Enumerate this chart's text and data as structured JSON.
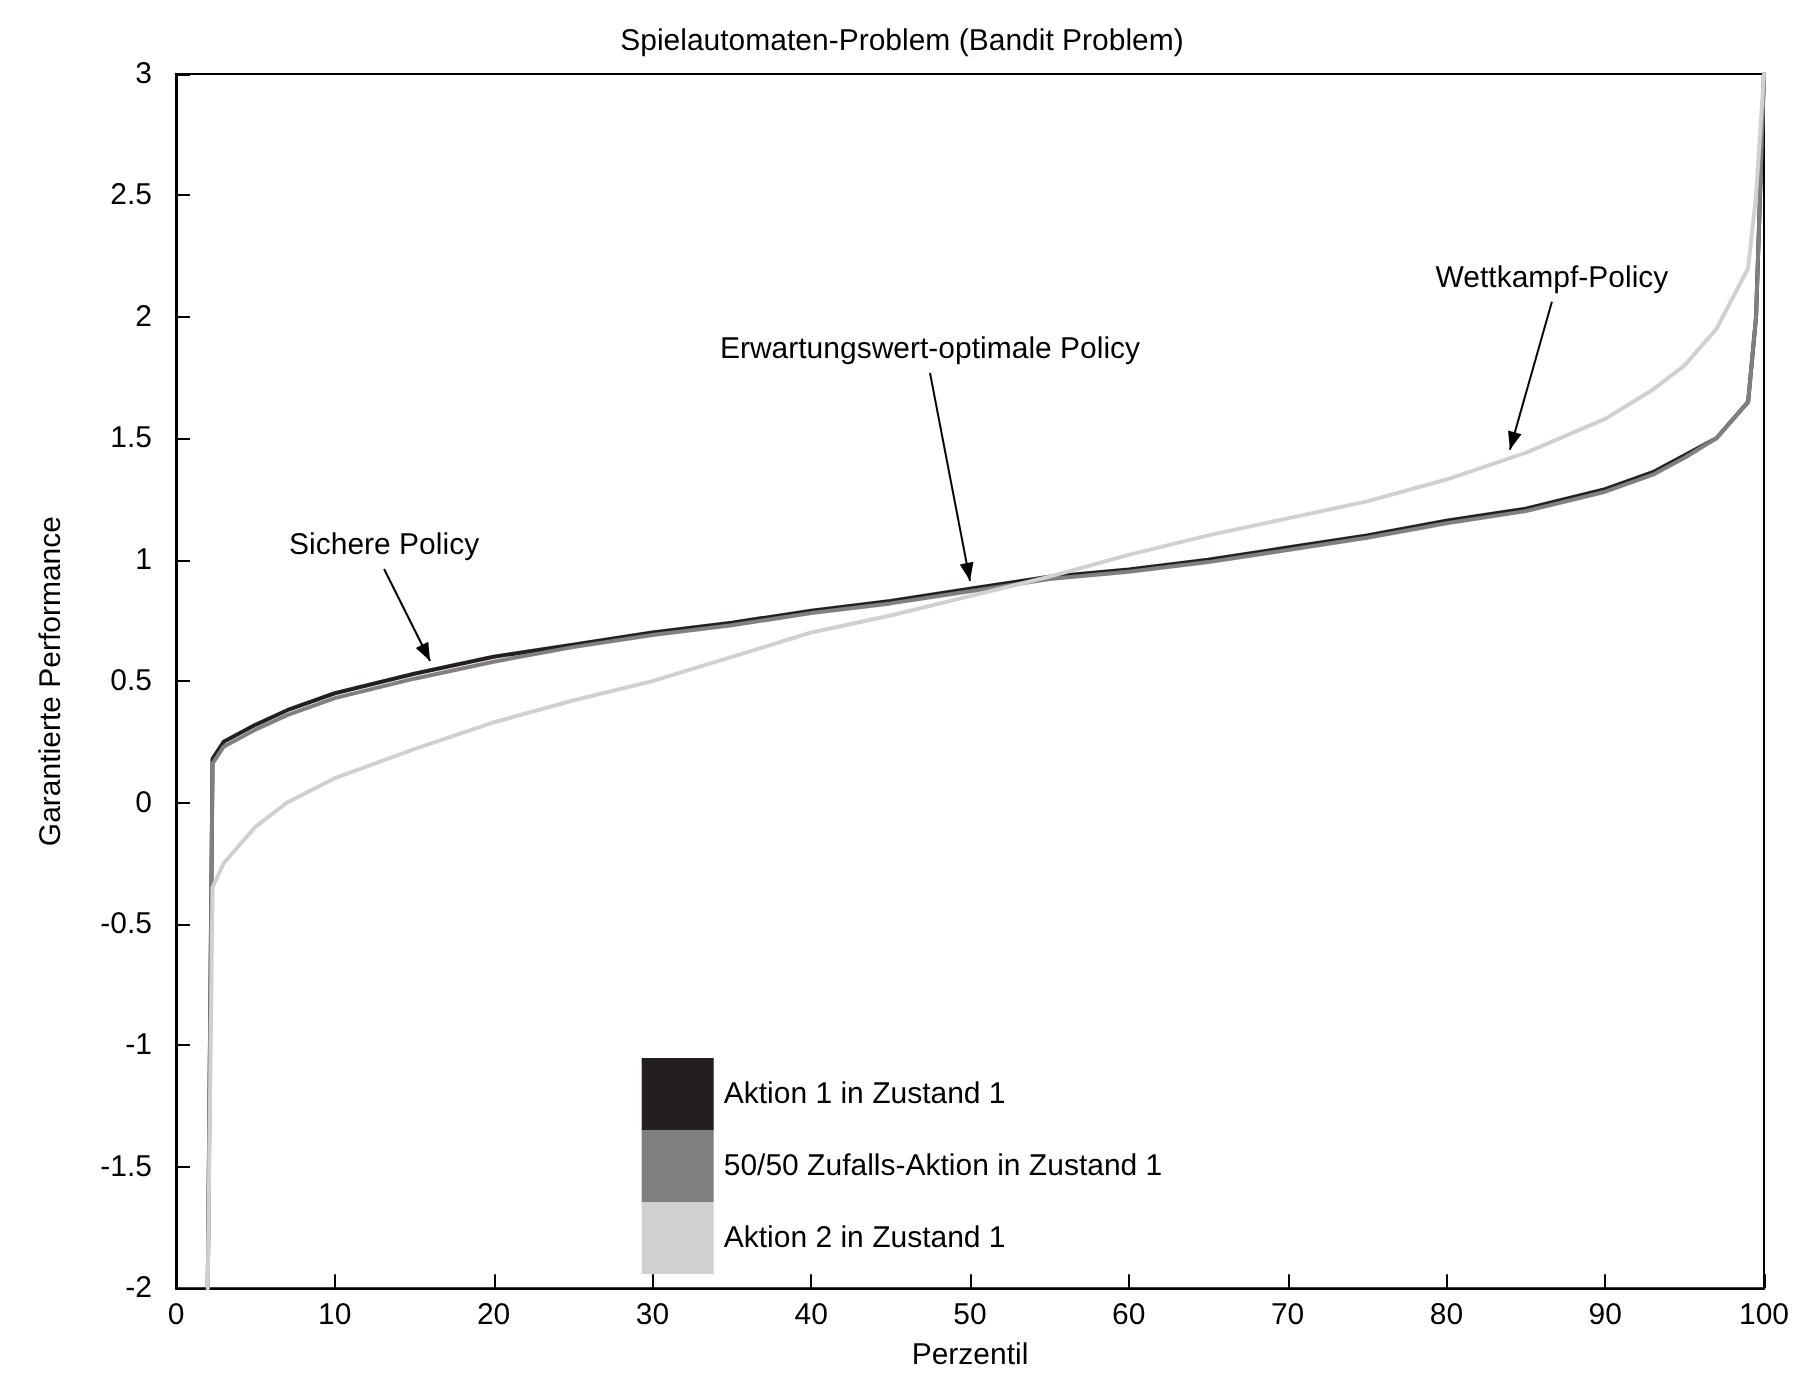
{
  "chart_data": {
    "type": "line",
    "title": "Spielautomaten-Problem (Bandit Problem)",
    "xlabel": "Perzentil",
    "ylabel": "Garantierte Performance",
    "x": [
      2,
      2.3,
      3,
      5,
      7,
      10,
      15,
      20,
      25,
      30,
      35,
      40,
      45,
      50,
      55,
      60,
      65,
      70,
      75,
      80,
      85,
      90,
      93,
      95,
      97,
      99,
      99.5,
      100
    ],
    "series": [
      {
        "name": "Aktion 1 in Zustand 1",
        "color": "#231f20",
        "values": [
          -2,
          0.18,
          0.25,
          0.32,
          0.38,
          0.45,
          0.53,
          0.6,
          0.65,
          0.7,
          0.74,
          0.79,
          0.83,
          0.88,
          0.93,
          0.96,
          1.0,
          1.05,
          1.1,
          1.16,
          1.21,
          1.29,
          1.36,
          1.43,
          1.5,
          1.65,
          2.0,
          3
        ]
      },
      {
        "name": "50/50 Zufalls-Aktion in Zustand 1",
        "color": "#808080",
        "values": [
          -2,
          0.16,
          0.23,
          0.3,
          0.36,
          0.43,
          0.51,
          0.58,
          0.64,
          0.69,
          0.73,
          0.78,
          0.82,
          0.87,
          0.92,
          0.95,
          0.99,
          1.04,
          1.09,
          1.15,
          1.2,
          1.28,
          1.35,
          1.42,
          1.5,
          1.65,
          2.0,
          3
        ]
      },
      {
        "name": "Aktion 2 in Zustand 1",
        "color": "#d0d0d0",
        "values": [
          -2,
          -0.35,
          -0.25,
          -0.1,
          0.0,
          0.1,
          0.22,
          0.33,
          0.42,
          0.5,
          0.6,
          0.7,
          0.77,
          0.85,
          0.93,
          1.02,
          1.1,
          1.17,
          1.24,
          1.33,
          1.44,
          1.58,
          1.7,
          1.8,
          1.95,
          2.2,
          2.5,
          3
        ]
      }
    ],
    "annotations": [
      {
        "text": "Sichere Policy",
        "x": 16,
        "y": 0.55
      },
      {
        "text": "Erwartungswert-optimale Policy",
        "x": 50,
        "y": 0.88
      },
      {
        "text": "Wettkampf-Policy",
        "x": 84,
        "y": 1.42
      }
    ],
    "xlim": [
      0,
      100
    ],
    "xticks": [
      0,
      10,
      20,
      30,
      40,
      50,
      60,
      70,
      80,
      90,
      100
    ],
    "ylim": [
      -2,
      3
    ],
    "yticks": [
      -2,
      -1.5,
      -1,
      -0.5,
      0,
      0.5,
      1,
      1.5,
      2,
      2.5,
      3
    ],
    "grid": false,
    "legend": "bottom",
    "marker": "none",
    "line_style": "solid"
  }
}
